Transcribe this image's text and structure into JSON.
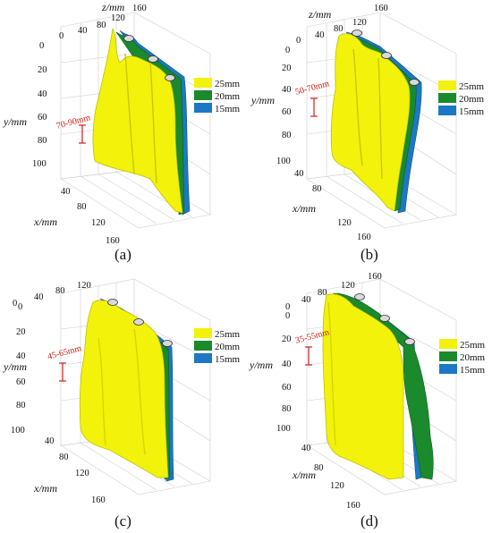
{
  "axes": {
    "z_label": "z/mm",
    "y_label": "y/mm",
    "x_label": "x/mm",
    "z_ticks": [
      "0",
      "40",
      "80",
      "120",
      "160"
    ],
    "y_ticks": [
      "0",
      "20",
      "40",
      "60",
      "80",
      "100"
    ],
    "x_ticks": [
      "40",
      "80",
      "120",
      "160"
    ]
  },
  "legend": [
    {
      "label": "25mm",
      "color": "#f2f20a"
    },
    {
      "label": "20mm",
      "color": "#1a8a2c"
    },
    {
      "label": "15mm",
      "color": "#1c78c4"
    }
  ],
  "panels": [
    {
      "label": "(a)",
      "range": "70-90mm"
    },
    {
      "label": "(b)",
      "range": "50-70mm"
    },
    {
      "label": "(c)",
      "range": "45-65mm"
    },
    {
      "label": "(d)",
      "range": "35-55mm"
    }
  ]
}
